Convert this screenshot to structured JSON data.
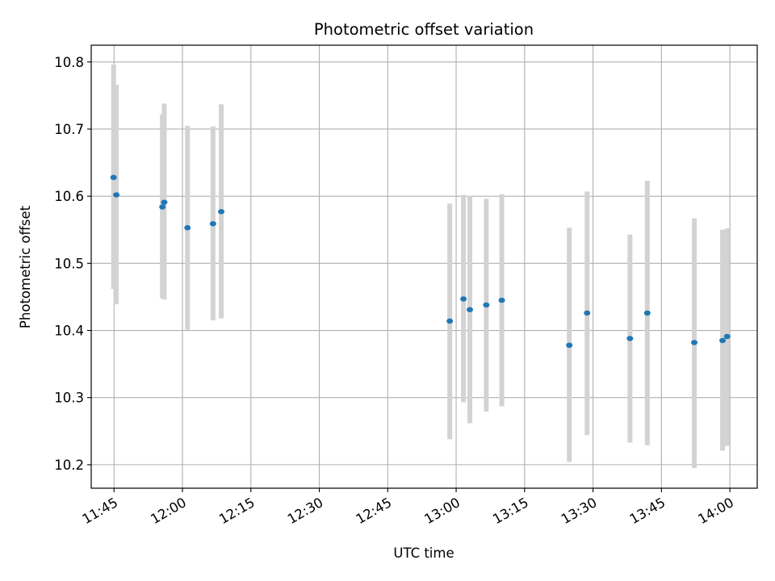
{
  "chart_data": {
    "type": "scatter",
    "title": "Photometric offset variation",
    "xlabel": "UTC time",
    "ylabel": "Photometric offset",
    "x_is_time": true,
    "xlim": [
      "11:40",
      "14:06"
    ],
    "ylim": [
      10.165,
      10.825
    ],
    "grid": true,
    "x_ticks": [
      "11:45",
      "12:00",
      "12:15",
      "12:30",
      "12:45",
      "13:00",
      "13:15",
      "13:30",
      "13:45",
      "14:00"
    ],
    "y_ticks": [
      10.2,
      10.3,
      10.4,
      10.5,
      10.6,
      10.7,
      10.8
    ],
    "y_tick_labels": [
      "10.2",
      "10.3",
      "10.4",
      "10.5",
      "10.6",
      "10.7",
      "10.8"
    ],
    "marker_color": "#1f77b4",
    "errorbar_color": "#d3d3d3",
    "points": [
      {
        "x": "11:44.9",
        "y": 10.628,
        "lo": 10.462,
        "hi": 10.796
      },
      {
        "x": "11:45.5",
        "y": 10.602,
        "lo": 10.439,
        "hi": 10.766
      },
      {
        "x": "11:55.6",
        "y": 10.584,
        "lo": 10.448,
        "hi": 10.722
      },
      {
        "x": "11:56.0",
        "y": 10.591,
        "lo": 10.446,
        "hi": 10.738
      },
      {
        "x": "12:01.1",
        "y": 10.553,
        "lo": 10.401,
        "hi": 10.705
      },
      {
        "x": "12:06.7",
        "y": 10.559,
        "lo": 10.415,
        "hi": 10.704
      },
      {
        "x": "12:08.5",
        "y": 10.577,
        "lo": 10.418,
        "hi": 10.737
      },
      {
        "x": "12:58.6",
        "y": 10.414,
        "lo": 10.238,
        "hi": 10.589
      },
      {
        "x": "13:01.6",
        "y": 10.447,
        "lo": 10.293,
        "hi": 10.602
      },
      {
        "x": "13:03.0",
        "y": 10.431,
        "lo": 10.262,
        "hi": 10.601
      },
      {
        "x": "13:06.6",
        "y": 10.438,
        "lo": 10.279,
        "hi": 10.596
      },
      {
        "x": "13:10.0",
        "y": 10.445,
        "lo": 10.287,
        "hi": 10.603
      },
      {
        "x": "13:24.8",
        "y": 10.378,
        "lo": 10.204,
        "hi": 10.553
      },
      {
        "x": "13:28.7",
        "y": 10.426,
        "lo": 10.244,
        "hi": 10.607
      },
      {
        "x": "13:38.1",
        "y": 10.388,
        "lo": 10.233,
        "hi": 10.543
      },
      {
        "x": "13:41.9",
        "y": 10.426,
        "lo": 10.229,
        "hi": 10.623
      },
      {
        "x": "13:52.2",
        "y": 10.382,
        "lo": 10.195,
        "hi": 10.567
      },
      {
        "x": "13:58.4",
        "y": 10.385,
        "lo": 10.221,
        "hi": 10.55
      },
      {
        "x": "13:59.4",
        "y": 10.391,
        "lo": 10.228,
        "hi": 10.552
      }
    ]
  }
}
